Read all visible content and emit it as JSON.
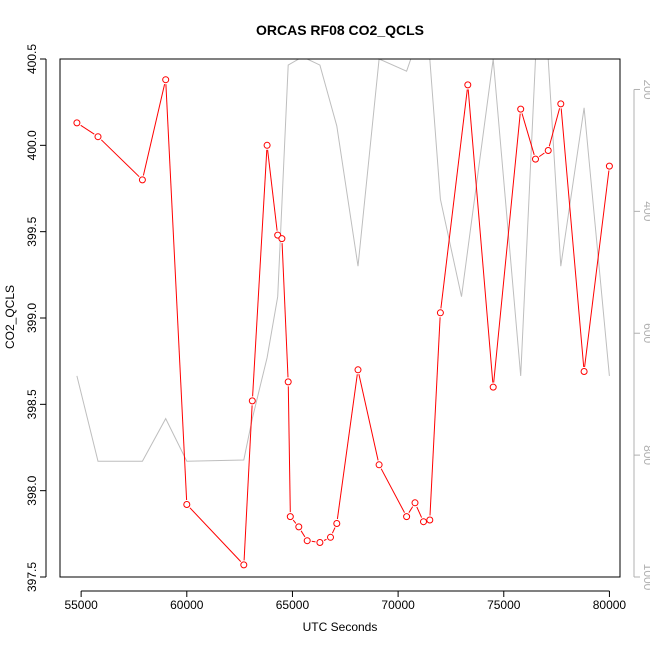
{
  "chart_data": {
    "type": "line",
    "title": "ORCAS RF08 CO2_QCLS",
    "xlabel": "UTC Seconds",
    "ylabel": "CO2_QCLS",
    "xlim": [
      54000,
      80500
    ],
    "ylim": [
      397.5,
      400.5
    ],
    "y2lim": [
      1000,
      150
    ],
    "x_ticks": [
      55000,
      60000,
      65000,
      70000,
      75000,
      80000
    ],
    "y_ticks": [
      397.5,
      398.0,
      398.5,
      399.0,
      399.5,
      400.0,
      400.5
    ],
    "y2_ticks": [
      200,
      400,
      600,
      800,
      1000
    ],
    "x_tick_labels": [
      "55000",
      "60000",
      "65000",
      "70000",
      "75000",
      "80000"
    ],
    "y_tick_labels": [
      "397.5",
      "398.0",
      "398.5",
      "399.0",
      "399.5",
      "400.0",
      "400.5"
    ],
    "y2_tick_labels": [
      "200",
      "400",
      "600",
      "800",
      "1000"
    ],
    "grid": false,
    "colors": {
      "primary": "#ff0000",
      "secondary": "#bebebe"
    },
    "series": [
      {
        "axis": "left",
        "style": "line-points",
        "x": [
          54800,
          55800,
          57900,
          59000,
          60000,
          62700,
          63100,
          63800,
          64300,
          64500,
          64800,
          64900,
          65300,
          65700,
          66300,
          66800,
          67100,
          68100,
          69100,
          70400,
          70800,
          71200,
          71500,
          72000,
          73300,
          74500,
          75800,
          76500,
          77100,
          77700,
          78800,
          80000
        ],
        "values": [
          400.13,
          400.05,
          399.8,
          400.38,
          397.92,
          397.57,
          398.52,
          400.0,
          399.48,
          399.46,
          398.63,
          397.85,
          397.79,
          397.71,
          397.7,
          397.73,
          397.81,
          398.7,
          398.15,
          397.85,
          397.93,
          397.82,
          397.83,
          399.03,
          400.35,
          398.6,
          400.21,
          399.92,
          399.97,
          400.24,
          398.69,
          399.88
        ]
      },
      {
        "axis": "right",
        "style": "line",
        "x": [
          54800,
          55800,
          57900,
          59000,
          60000,
          62700,
          63100,
          63800,
          64300,
          64800,
          65300,
          65700,
          66300,
          67100,
          68100,
          69100,
          70400,
          70600,
          71500,
          72000,
          73000,
          74500,
          75800,
          76500,
          77100,
          77700,
          78800,
          80000
        ],
        "values": [
          670,
          810,
          810,
          740,
          810,
          808,
          740,
          640,
          540,
          160,
          100,
          150,
          160,
          260,
          490,
          100,
          170,
          100,
          100,
          380,
          540,
          100,
          670,
          100,
          100,
          490,
          230,
          670
        ]
      }
    ]
  }
}
